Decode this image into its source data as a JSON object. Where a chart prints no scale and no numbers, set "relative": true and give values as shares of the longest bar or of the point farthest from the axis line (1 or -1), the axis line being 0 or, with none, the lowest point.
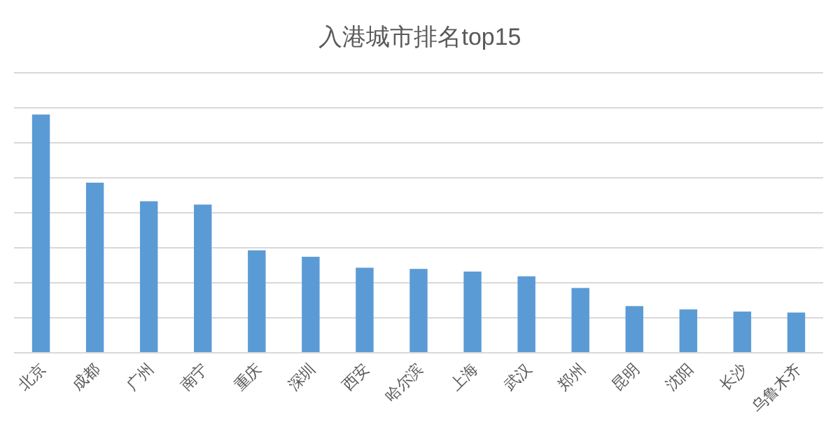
{
  "chart_data": {
    "type": "bar",
    "title": "入港城市排名top15",
    "categories": [
      "北京",
      "成都",
      "广州",
      "南宁",
      "重庆",
      "深圳",
      "西安",
      "哈尔滨",
      "上海",
      "武汉",
      "郑州",
      "昆明",
      "沈阳",
      "长沙",
      "乌鲁木齐"
    ],
    "values": [
      1,
      0.714,
      0.636,
      0.622,
      0.43,
      0.403,
      0.357,
      0.352,
      0.341,
      0.321,
      0.272,
      0.196,
      0.182,
      0.173,
      0.169
    ],
    "color": "#5b9bd5",
    "relative": true,
    "grid": "y"
  }
}
